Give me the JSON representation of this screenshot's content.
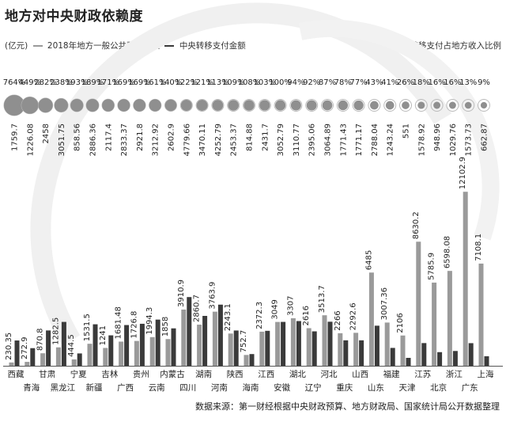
{
  "title": "地方对中央财政依赖度",
  "legend_unit": "(亿元)",
  "legend_series1": "2018年地方一般公共预算收入",
  "legend_series2": "中央转移支付金额",
  "legend_ratio": "转移支付占地方收入比例",
  "source": "数据来源：第一财经根据中央财政预算、地方财政局、国家统计局公开数据整理",
  "colors": {
    "revenue": "#9a9a9a",
    "transfer": "#3a3a3a",
    "circle": "#8f8f8f"
  },
  "chart_data": {
    "type": "bar",
    "categories": [
      "西藏",
      "青海",
      "甘肃",
      "黑龙江",
      "宁夏",
      "新疆",
      "吉林",
      "广西",
      "贵州",
      "云南",
      "内蒙古",
      "四川",
      "湖南",
      "河南",
      "陕西",
      "海南",
      "江西",
      "安徽",
      "湖北",
      "辽宁",
      "河北",
      "重庆",
      "山西",
      "山东",
      "福建",
      "天津",
      "江苏",
      "北京",
      "浙江",
      "广东",
      "上海"
    ],
    "series": [
      {
        "name": "2018年地方一般公共预算收入",
        "values": [
          230.35,
          272.9,
          870.8,
          1282.5,
          444.5,
          1531.5,
          1241,
          1681.48,
          1726.8,
          1994.3,
          1858,
          3910.9,
          2860.7,
          3763.9,
          2243.1,
          752.7,
          2372.3,
          3049,
          3307,
          2616,
          3513.7,
          2266,
          2292.6,
          6485,
          3007.36,
          2106,
          8630.2,
          5785.9,
          6598.08,
          12102.9,
          7108.1
        ]
      },
      {
        "name": "中央转移支付金额",
        "values": [
          1759.7,
          1226.08,
          2458,
          3051.75,
          858.56,
          2886.36,
          2117.4,
          2833.37,
          2921.8,
          3212.92,
          2602.9,
          4779.66,
          3470.11,
          4252.79,
          2453.37,
          814.88,
          2431.7,
          3052.79,
          3110.77,
          2395.06,
          3064.89,
          1771.43,
          1771.17,
          2788.04,
          1243.24,
          551,
          1578.92,
          948.96,
          1029.76,
          1573.73,
          662.87
        ]
      }
    ],
    "ratio": [
      "764%",
      "449%",
      "282%",
      "238%",
      "193%",
      "189%",
      "171%",
      "169%",
      "169%",
      "161%",
      "140%",
      "122%",
      "121%",
      "113%",
      "109%",
      "108%",
      "103%",
      "100%",
      "94%",
      "92%",
      "87%",
      "78%",
      "77%",
      "43%",
      "41%",
      "26%",
      "18%",
      "16%",
      "16%",
      "13%",
      "9%"
    ],
    "ratio_values": [
      764,
      449,
      282,
      238,
      193,
      189,
      171,
      169,
      169,
      161,
      140,
      122,
      121,
      113,
      109,
      108,
      103,
      100,
      94,
      92,
      87,
      78,
      77,
      43,
      41,
      26,
      18,
      16,
      16,
      13,
      9
    ],
    "transfer_labels": [
      "1759.7",
      "1226.08",
      "2458",
      "3051.75",
      "858.56",
      "2886.36",
      "2117.4",
      "2833.37",
      "2921.8",
      "3212.92",
      "2602.9",
      "4779.66",
      "3470.11",
      "4252.79",
      "2453.37",
      "814.88",
      "2431.7",
      "3052.79",
      "3110.77",
      "2395.06",
      "3064.89",
      "1771.43",
      "1771.17",
      "2788.04",
      "1243.24",
      "551",
      "1578.92",
      "948.96",
      "1029.76",
      "1573.73",
      "662.87"
    ],
    "revenue_labels": [
      "230.35",
      "272.9",
      "870.8",
      "1282.5",
      "444.5",
      "1531.5",
      "1241",
      "1681.48",
      "1726.8",
      "1994.3",
      "1858",
      "3910.9",
      "2860.7",
      "3763.9",
      "2243.1",
      "752.7",
      "2372.3",
      "3049",
      "3307",
      "2616",
      "3513.7",
      "2266",
      "2292.6",
      "6485",
      "3007.36",
      "2106",
      "8630.2",
      "5785.9",
      "6598.08",
      "12102.9",
      "7108.1"
    ],
    "ylim": [
      0,
      12500
    ],
    "grid": false,
    "legend_position": "top"
  }
}
